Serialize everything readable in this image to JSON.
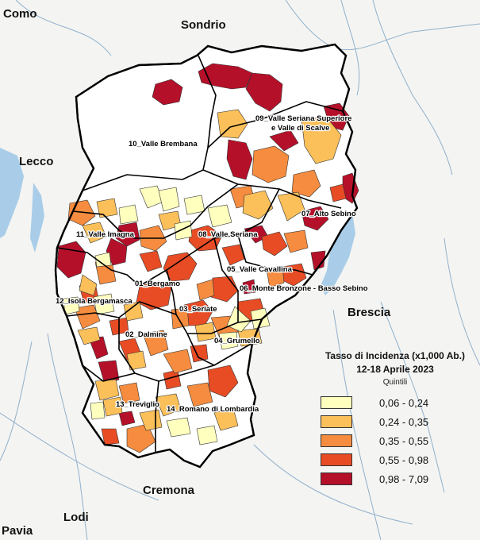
{
  "provinces": {
    "como": "Como",
    "sondrio": "Sondrio",
    "lecco": "Lecco",
    "brescia": "Brescia",
    "cremona": "Cremona",
    "lodi": "Lodi",
    "pavia": "Pavia"
  },
  "districts": [
    "01_Bergamo",
    "02_Dalmine",
    "03_Seriate",
    "04_Grumello",
    "05_Valle Cavallina",
    "06_Monte Bronzone - Basso Sebino",
    "07_Alto Sebino",
    "08_Valle Seriana",
    "09_Valle Seriana Superiore",
    "e Valle di Scalve",
    "10_Valle Brembana",
    "11_Valle Imagna",
    "12_Isola Bergamasca",
    "13_Treviglio",
    "14_Romano di Lombardia"
  ],
  "legend": {
    "title_line1": "Tasso di Incidenza (x1,000 Ab.)",
    "title_line2": "12-18 Aprile 2023",
    "subtitle": "Quintili",
    "classes": [
      {
        "range": "0,06 - 0,24",
        "color": "#ffffbe"
      },
      {
        "range": "0,24 - 0,35",
        "color": "#fcc05a"
      },
      {
        "range": "0,35 - 0,55",
        "color": "#f58c3f"
      },
      {
        "range": "0,55 - 0,98",
        "color": "#e84c25"
      },
      {
        "range": "0,98 - 7,09",
        "color": "#b5102a"
      }
    ]
  },
  "colors": {
    "background": "#f4f4f2",
    "water": "#a9cde8",
    "river": "#8fb0cc",
    "no_data": "#ffffff",
    "boundary": "#000000"
  }
}
